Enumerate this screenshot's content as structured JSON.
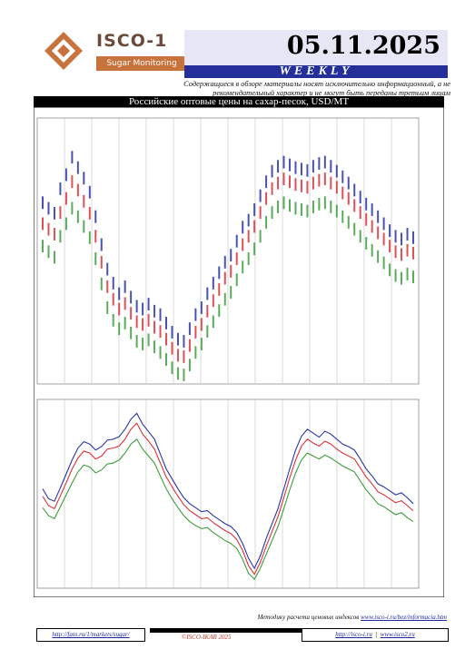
{
  "header": {
    "logo_name": "ISCO-1",
    "logo_sub": "Sugar Monitoring",
    "date": "05.11.2025",
    "period": "WEEKLY",
    "disclaimer": "Содержащиеся в обзоре материалы носят исключительно информационный, а не рекомендательный характер и не могут быть переданы третьим лицам"
  },
  "colors": {
    "brand_navy": "#252f99",
    "brand_orange": "#c9733c",
    "date_box": "#e6e6f4",
    "series_high": "#2a35a8",
    "series_mid": "#d9333a",
    "series_low": "#3e9e3e"
  },
  "chart_data": [
    {
      "type": "bar",
      "title": "Российские оптовые цены на сахар-песок, USD/MT",
      "subtitle": "",
      "xlabel": "",
      "ylabel": "",
      "ylim": [
        560,
        940
      ],
      "grid": "vertical",
      "series": [
        {
          "values": [
            820,
            812,
            805,
            840,
            860,
            885,
            870,
            855,
            835,
            800,
            760,
            725,
            705,
            690,
            700,
            685,
            672,
            668,
            675,
            665,
            660,
            648,
            635,
            625,
            622,
            640,
            660,
            670,
            690,
            705,
            720,
            735,
            745,
            765,
            785,
            795,
            810,
            830,
            850,
            865,
            872,
            878,
            874,
            870,
            868,
            866,
            872,
            876,
            878,
            872,
            865,
            857,
            848,
            838,
            828,
            818,
            810,
            800,
            790,
            780,
            772,
            768,
            775,
            770
          ]
        },
        {
          "values": [
            790,
            782,
            775,
            806,
            826,
            850,
            838,
            822,
            805,
            772,
            735,
            700,
            682,
            668,
            676,
            662,
            650,
            646,
            652,
            642,
            636,
            625,
            612,
            602,
            600,
            616,
            635,
            646,
            665,
            680,
            696,
            712,
            722,
            740,
            760,
            772,
            786,
            806,
            826,
            840,
            848,
            854,
            850,
            846,
            844,
            842,
            848,
            852,
            854,
            848,
            842,
            834,
            826,
            816,
            806,
            796,
            786,
            777,
            768,
            758,
            750,
            746,
            752,
            748
          ]
        },
        {
          "values": [
            758,
            750,
            742,
            772,
            790,
            812,
            800,
            786,
            770,
            740,
            704,
            670,
            652,
            640,
            648,
            634,
            622,
            618,
            624,
            614,
            606,
            596,
            584,
            576,
            574,
            588,
            606,
            618,
            636,
            650,
            666,
            682,
            692,
            710,
            728,
            740,
            754,
            772,
            792,
            806,
            814,
            820,
            816,
            812,
            810,
            808,
            814,
            818,
            820,
            814,
            808,
            800,
            792,
            782,
            772,
            762,
            752,
            743,
            734,
            724,
            716,
            712,
            718,
            714
          ]
        }
      ]
    },
    {
      "type": "line",
      "title": "",
      "xlabel": "",
      "ylabel": "",
      "ylim": [
        560,
        940
      ],
      "grid": "vertical",
      "series": [
        {
          "values": [
            760,
            740,
            735,
            762,
            790,
            818,
            842,
            855,
            850,
            838,
            845,
            858,
            860,
            865,
            880,
            900,
            912,
            890,
            875,
            860,
            830,
            800,
            780,
            760,
            742,
            730,
            722,
            714,
            716,
            706,
            698,
            690,
            684,
            672,
            650,
            620,
            600,
            625,
            660,
            690,
            720,
            760,
            800,
            838,
            866,
            880,
            872,
            864,
            876,
            870,
            860,
            850,
            845,
            838,
            820,
            800,
            786,
            770,
            764,
            756,
            748,
            752,
            742,
            730
          ]
        },
        {
          "values": [
            745,
            726,
            720,
            746,
            772,
            800,
            822,
            836,
            832,
            820,
            826,
            840,
            842,
            846,
            860,
            880,
            892,
            870,
            856,
            840,
            812,
            784,
            764,
            745,
            728,
            716,
            708,
            700,
            702,
            692,
            684,
            676,
            670,
            658,
            636,
            605,
            588,
            612,
            644,
            674,
            704,
            742,
            782,
            818,
            846,
            860,
            852,
            846,
            856,
            850,
            840,
            832,
            826,
            820,
            802,
            784,
            770,
            754,
            748,
            740,
            732,
            736,
            726,
            716
          ]
        },
        {
          "values": [
            722,
            706,
            700,
            724,
            748,
            772,
            794,
            808,
            804,
            792,
            798,
            810,
            812,
            818,
            832,
            850,
            860,
            840,
            826,
            812,
            786,
            760,
            740,
            722,
            706,
            694,
            686,
            680,
            682,
            672,
            664,
            656,
            650,
            640,
            618,
            590,
            578,
            600,
            628,
            656,
            684,
            720,
            758,
            792,
            818,
            832,
            826,
            820,
            828,
            822,
            814,
            806,
            800,
            794,
            776,
            758,
            744,
            730,
            724,
            716,
            708,
            712,
            702,
            694
          ]
        }
      ]
    }
  ],
  "footer": {
    "methodology_label": "Методику расчета ценовых индексов",
    "methodology_link": "www.isco-i.ru/bez/informacia.htm",
    "link_left": "http://fato.ru/1/markets/sugar/",
    "copyright": "©ISCO-IKAR 2025",
    "link_right_1": "http://isco-i.ru",
    "link_right_2": "www.isco2.ru"
  }
}
